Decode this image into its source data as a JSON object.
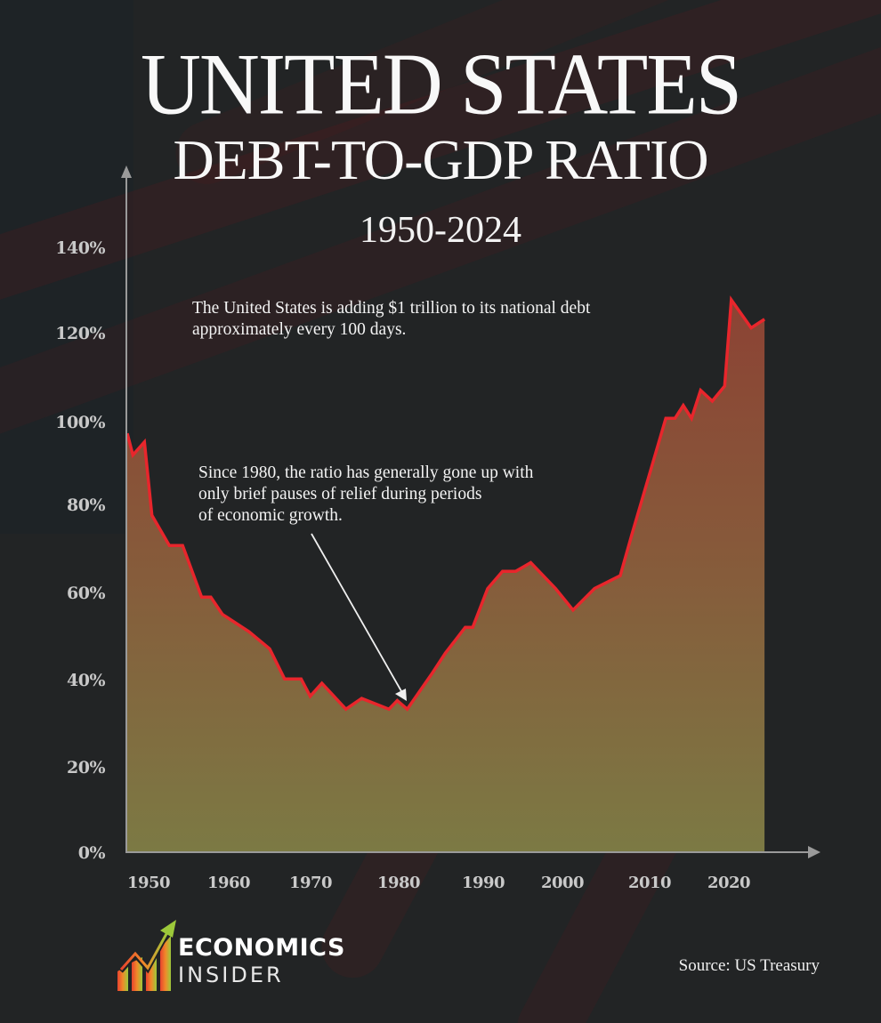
{
  "title": {
    "main": "UNITED STATES",
    "sub": "DEBT-TO-GDP RATIO",
    "range": "1950-2024"
  },
  "annotations": {
    "top": [
      "The United States is adding $1 trillion to its national debt",
      "approximately every 100 days."
    ],
    "middle": [
      "Since 1980, the ratio has generally gone up with",
      "only brief pauses of relief during periods",
      "of economic growth."
    ]
  },
  "source": "Source: US Treasury",
  "logo": {
    "word1": "ECONOMICS",
    "word2": "INSIDER"
  },
  "colors": {
    "background": "#222425",
    "line": "#e8262c",
    "fill_top": "#8c4234",
    "fill_bottom": "#7c7a44",
    "axis": "#9a9a9a",
    "text": "#f2f2f2"
  },
  "chart_data": {
    "type": "area",
    "title": "United States Debt-to-GDP Ratio 1950-2024",
    "xlabel": "",
    "ylabel": "",
    "xlim": [
      1947,
      2024
    ],
    "ylim": [
      0,
      140
    ],
    "grid": false,
    "legend": null,
    "x_ticks": [
      1950,
      1960,
      1970,
      1980,
      1990,
      2000,
      2010,
      2020
    ],
    "y_ticks": [
      "0%",
      "20%",
      "40%",
      "60%",
      "80%",
      "100%",
      "120%",
      "140%"
    ],
    "series": [
      {
        "name": "Debt-to-GDP (%)",
        "points": [
          {
            "x": 1947.4,
            "y": 97
          },
          {
            "x": 1948.1,
            "y": 92
          },
          {
            "x": 1949.5,
            "y": 95
          },
          {
            "x": 1950.4,
            "y": 78
          },
          {
            "x": 1952.5,
            "y": 71
          },
          {
            "x": 1954.1,
            "y": 71
          },
          {
            "x": 1956.4,
            "y": 59
          },
          {
            "x": 1957.5,
            "y": 59
          },
          {
            "x": 1958.9,
            "y": 55
          },
          {
            "x": 1962.1,
            "y": 51
          },
          {
            "x": 1964.6,
            "y": 47
          },
          {
            "x": 1966.4,
            "y": 40
          },
          {
            "x": 1968.4,
            "y": 40
          },
          {
            "x": 1969.5,
            "y": 36
          },
          {
            "x": 1970.9,
            "y": 39
          },
          {
            "x": 1973.8,
            "y": 33
          },
          {
            "x": 1975.7,
            "y": 35.5
          },
          {
            "x": 1979.0,
            "y": 33
          },
          {
            "x": 1980.0,
            "y": 35
          },
          {
            "x": 1981.2,
            "y": 33
          },
          {
            "x": 1984.1,
            "y": 41
          },
          {
            "x": 1985.8,
            "y": 46
          },
          {
            "x": 1988.2,
            "y": 52
          },
          {
            "x": 1989.1,
            "y": 52
          },
          {
            "x": 1990.9,
            "y": 61
          },
          {
            "x": 1992.7,
            "y": 65
          },
          {
            "x": 1994.3,
            "y": 65
          },
          {
            "x": 1996.1,
            "y": 67
          },
          {
            "x": 1999.1,
            "y": 61
          },
          {
            "x": 2001.2,
            "y": 56
          },
          {
            "x": 2003.8,
            "y": 61
          },
          {
            "x": 2006.9,
            "y": 64
          },
          {
            "x": 2008.3,
            "y": 73.5
          },
          {
            "x": 2012.4,
            "y": 100.5
          },
          {
            "x": 2013.5,
            "y": 100.5
          },
          {
            "x": 2014.5,
            "y": 103.5
          },
          {
            "x": 2015.5,
            "y": 100.5
          },
          {
            "x": 2016.6,
            "y": 107
          },
          {
            "x": 2018.0,
            "y": 104.5
          },
          {
            "x": 2019.5,
            "y": 108
          },
          {
            "x": 2020.3,
            "y": 128
          },
          {
            "x": 2022.7,
            "y": 121.5
          },
          {
            "x": 2024.3,
            "y": 123.5
          }
        ]
      }
    ],
    "annotations": [
      {
        "text": "The United States is adding $1 trillion to its national debt approximately every 100 days.",
        "position": "upper-center"
      },
      {
        "text": "Since 1980, the ratio has generally gone up with only brief pauses of relief during periods of economic growth.",
        "position": "center",
        "arrow_to": {
          "x": 1981,
          "y": 35
        }
      }
    ]
  }
}
